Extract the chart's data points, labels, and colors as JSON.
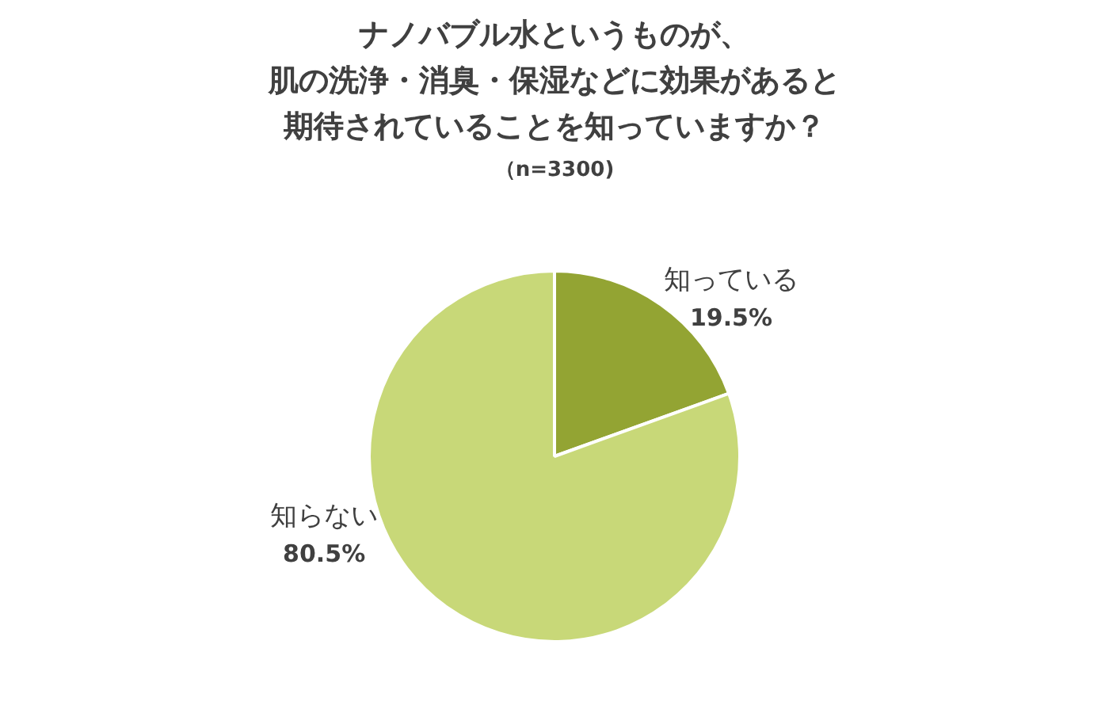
{
  "chart_data": {
    "type": "pie",
    "title": "ナノバブル水というものが、肌の洗浄・消臭・保湿などに効果があると期待されていることを知っていますか？",
    "subtitle": "（n=3300)",
    "categories": [
      "知っている",
      "知らない"
    ],
    "values": [
      19.5,
      80.5
    ],
    "colors": [
      "#93a433",
      "#c8d878"
    ],
    "value_labels": [
      "19.5%",
      "80.5%"
    ],
    "legend": false
  }
}
